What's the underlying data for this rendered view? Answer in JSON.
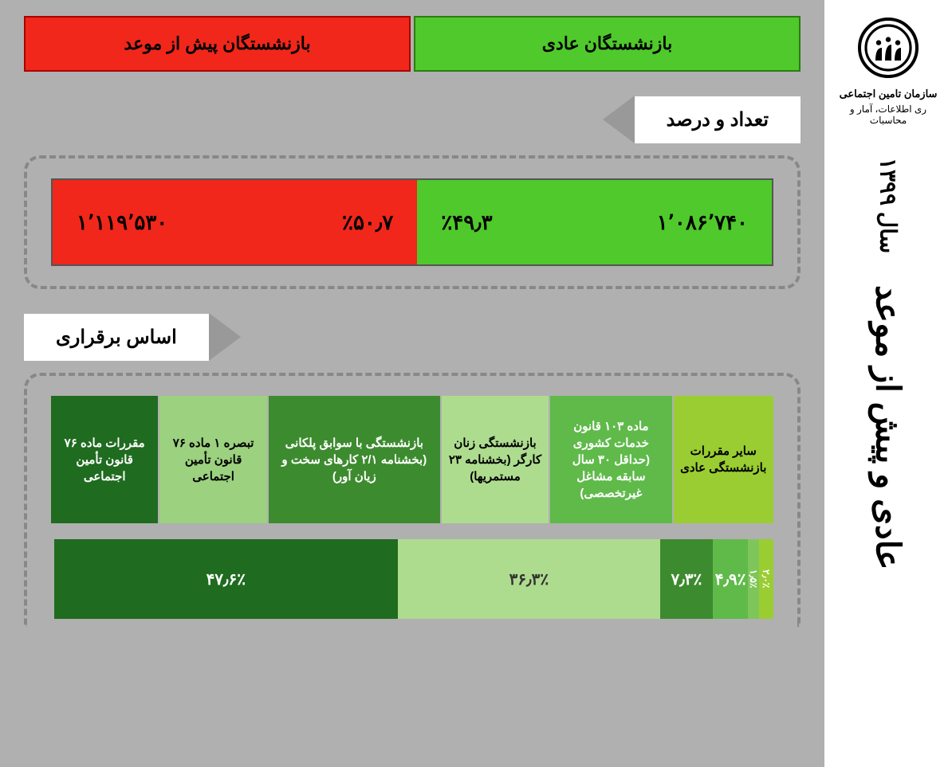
{
  "sidebar": {
    "org_name": "سازمان تامین اجتماعی",
    "org_sub": "ری اطلاعات، آمار و محاسبات",
    "year": "سال ۱۳۹۹",
    "main_title": "عادی و پیش از موعد"
  },
  "tabs": {
    "normal": "بازنشستگان عادی",
    "early": "بازنشستگان پیش از موعد"
  },
  "section1": {
    "title": "تعداد و درصد",
    "green_count": "۱٬۰۸۶٬۷۴۰",
    "green_pct": "٪۴۹٫۳",
    "green_width": 49.3,
    "red_count": "۱٬۱۱۹٬۵۳۰",
    "red_pct": "٪۵۰٫۷",
    "red_width": 50.7
  },
  "section2": {
    "title": "اساس برقراری",
    "categories": [
      {
        "label": "سایر مقررات بازنشستگی عادی",
        "color": "#9acd32",
        "text": "#000",
        "width": 14
      },
      {
        "label": "ماده ۱۰۳ قانون خدمات کشوری (حداقل ۳۰ سال سابقه مشاغل غیرتخصصی)",
        "color": "#5fba4a",
        "text": "#fff",
        "width": 17
      },
      {
        "label": "بازنشستگی زنان کارگر (بخشنامه ۲۳ مستمریها)",
        "color": "#aedc8f",
        "text": "#000",
        "width": 15
      },
      {
        "label": "بازنشستگی با سوابق پلکانی (بخشنامه ۲/۱ کارهای سخت و زیان آور)",
        "color": "#3d8b2f",
        "text": "#fff",
        "width": 24
      },
      {
        "label": "تبصره ۱ ماده ۷۶ قانون تأمین اجتماعی",
        "color": "#9bd17f",
        "text": "#000",
        "width": 15
      },
      {
        "label": "مقررات ماده ۷۶ قانون تأمین اجتماعی",
        "color": "#1f6b1f",
        "text": "#fff",
        "width": 15
      }
    ],
    "pct_segments": [
      {
        "label": "۲٫۰٪",
        "width": 2.0,
        "color": "#9acd32",
        "vert": true
      },
      {
        "label": "۱٫۵٪",
        "width": 1.5,
        "color": "#7fc65a",
        "vert": true
      },
      {
        "label": "۴٫۹٪",
        "width": 4.9,
        "color": "#5fba4a",
        "vert": false
      },
      {
        "label": "۷٫۳٪",
        "width": 7.3,
        "color": "#3d8b2f",
        "vert": false
      },
      {
        "label": "۳۶٫۳٪",
        "width": 36.3,
        "color": "#aedc8f",
        "vert": false,
        "dark_text": true
      },
      {
        "label": "۴۷٫۶٪",
        "width": 47.6,
        "color": "#1f6b1f",
        "vert": false
      }
    ]
  },
  "colors": {
    "bg_grey": "#b0b0b0",
    "green": "#4fc92b",
    "red": "#f0271a"
  }
}
